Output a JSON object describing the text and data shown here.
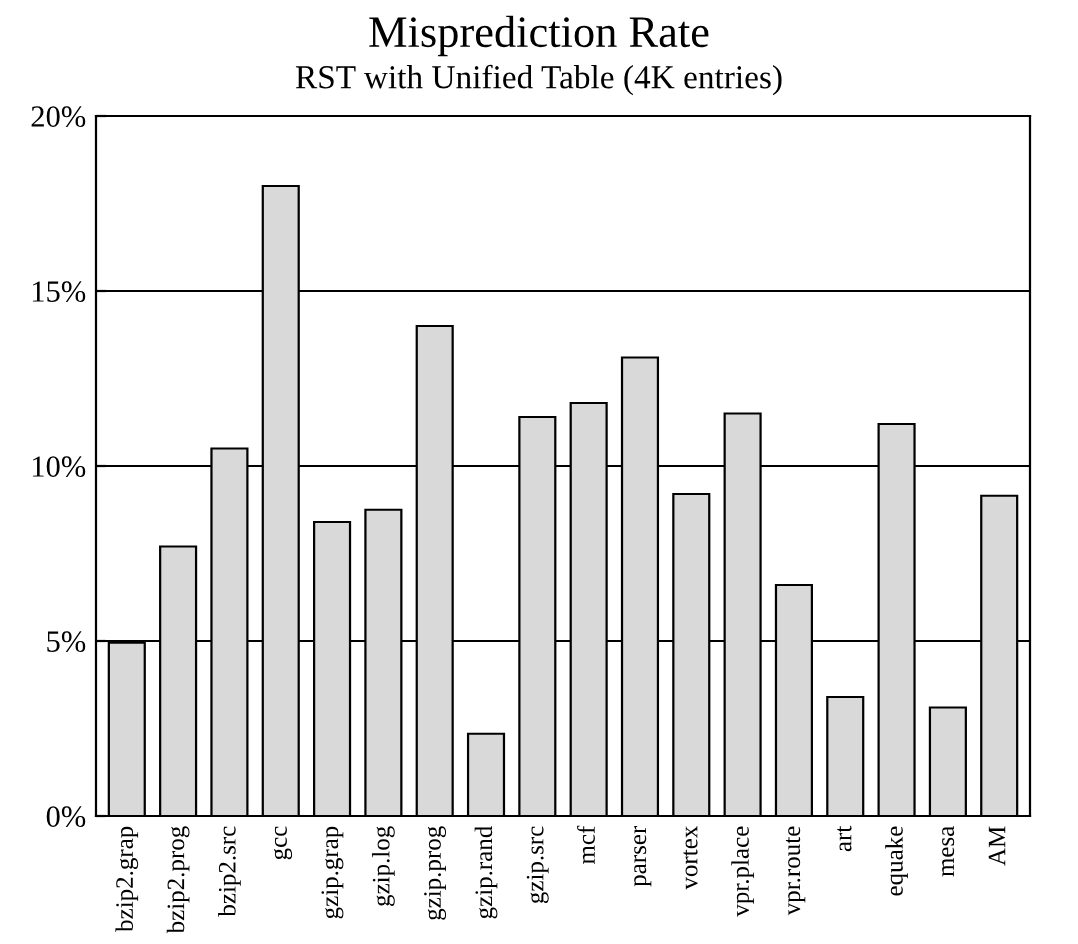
{
  "chart_data": {
    "type": "bar",
    "title": "Misprediction Rate",
    "subtitle": "RST with Unified Table (4K entries)",
    "categories": [
      "bzip2.grap",
      "bzip2.prog",
      "bzip2.src",
      "gcc",
      "gzip.grap",
      "gzip.log",
      "gzip.prog",
      "gzip.rand",
      "gzip.src",
      "mcf",
      "parser",
      "vortex",
      "vpr.place",
      "vpr.route",
      "art",
      "equake",
      "mesa",
      "AM"
    ],
    "values": [
      4.95,
      7.7,
      10.5,
      18.0,
      8.4,
      8.75,
      14.0,
      2.35,
      11.4,
      11.8,
      13.1,
      9.2,
      11.5,
      6.6,
      3.4,
      11.2,
      3.1,
      9.15
    ],
    "color": "#d9d9d9",
    "ylim": [
      0,
      20
    ],
    "yticks": [
      {
        "value": 0,
        "label": "0%"
      },
      {
        "value": 5,
        "label": "5%"
      },
      {
        "value": 10,
        "label": "10%"
      },
      {
        "value": 15,
        "label": "15%"
      },
      {
        "value": 20,
        "label": "20%"
      }
    ],
    "grid": "y"
  }
}
